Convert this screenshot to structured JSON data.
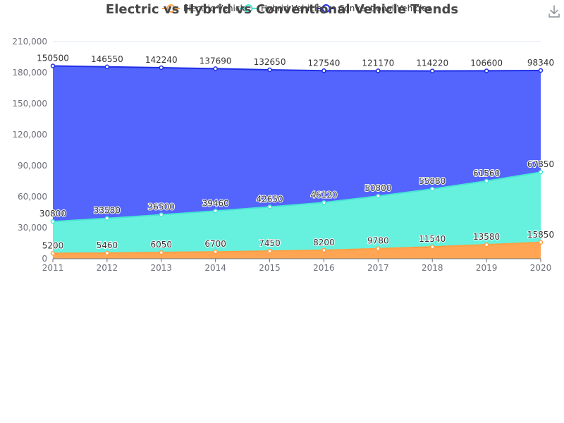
{
  "chart_data": {
    "type": "area",
    "stacked": true,
    "title": "Electric vs Hybrid vs Conventional Vehicle Trends",
    "categories": [
      "2011",
      "2012",
      "2013",
      "2014",
      "2015",
      "2016",
      "2017",
      "2018",
      "2019",
      "2020"
    ],
    "ylim": [
      0,
      210000
    ],
    "y_ticks": [
      0,
      30000,
      60000,
      90000,
      120000,
      150000,
      180000,
      210000
    ],
    "y_tick_labels": [
      "0",
      "30,000",
      "60,000",
      "90,000",
      "120,000",
      "150,000",
      "180,000",
      "210,000"
    ],
    "grid": true,
    "legend_position": "top",
    "series": [
      {
        "name": "Electric Vehicles",
        "color": "#ff9f43",
        "values": [
          5200,
          5460,
          6050,
          6700,
          7450,
          8200,
          9780,
          11540,
          13580,
          15850
        ]
      },
      {
        "name": "Hybrid Vehicles",
        "color": "#48e5d3",
        "values": [
          30800,
          33580,
          36500,
          39460,
          42650,
          46120,
          50800,
          55880,
          61560,
          67850
        ]
      },
      {
        "name": "Conventional Vehicles",
        "color": "#1e2fe6",
        "values": [
          150500,
          146550,
          142240,
          137690,
          132650,
          127540,
          121170,
          114220,
          106600,
          98340
        ]
      }
    ]
  },
  "toolbar": {
    "download_icon": "download-icon"
  }
}
